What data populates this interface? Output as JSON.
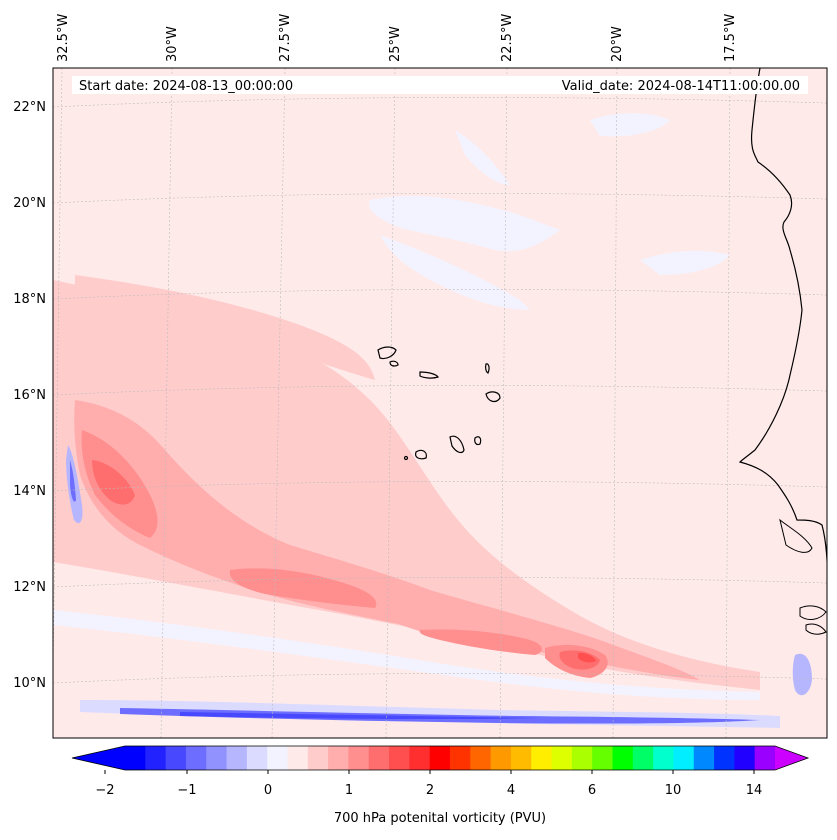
{
  "header": {
    "start_date": "Start date: 2024-08-13_00:00:00",
    "valid_date": "Valid_date: 2024-08-14T11:00:00.00"
  },
  "map": {
    "projection": "lambert-conformal",
    "longitude_labels": [
      "32.5°W",
      "30°W",
      "27.5°W",
      "25°W",
      "22.5°W",
      "20°W",
      "17.5°W"
    ],
    "latitude_labels": [
      "22°N",
      "20°N",
      "18°N",
      "16°N",
      "14°N",
      "12°N",
      "10°N"
    ],
    "features": [
      "Cabo Verde islands",
      "West African coastline (Mauritania, Senegal, Gambia, Guinea-Bissau)"
    ]
  },
  "colorbar": {
    "label": "700 hPa potenital vorticity (PVU)",
    "tick_labels": [
      "−2",
      "−1",
      "0",
      "1",
      "2",
      "4",
      "6",
      "10",
      "14"
    ],
    "colors": [
      "#0000ff",
      "#2222ff",
      "#4848ff",
      "#6d6dff",
      "#9292ff",
      "#b6b6ff",
      "#dbdbff",
      "#f3f3ff",
      "#ffeaea",
      "#ffcccc",
      "#ffadad",
      "#ff8e8e",
      "#ff6e6e",
      "#ff4f4f",
      "#ff2f2f",
      "#ff0000",
      "#ff3300",
      "#ff6600",
      "#ff9900",
      "#ffbb00",
      "#ffee00",
      "#ddff00",
      "#aaff00",
      "#66ff00",
      "#00ff00",
      "#00ff66",
      "#00ffcc",
      "#00eeff",
      "#0088ff",
      "#0033ff",
      "#2200ff",
      "#9900ff"
    ],
    "min_extend_color": "#0000ff",
    "max_extend_color": "#cc00ff"
  },
  "chart_data": {
    "type": "heatmap",
    "title": "",
    "variable": "700 hPa potenital vorticity (PVU)",
    "colorbar_ticks": [
      -2,
      -1,
      0,
      1,
      2,
      4,
      6,
      10,
      14
    ],
    "colorbar_range": [
      -2,
      16
    ],
    "extend": "both",
    "lon_range_deg": [
      -32.5,
      -15.5
    ],
    "lat_range_deg": [
      9,
      22.8
    ]
  }
}
